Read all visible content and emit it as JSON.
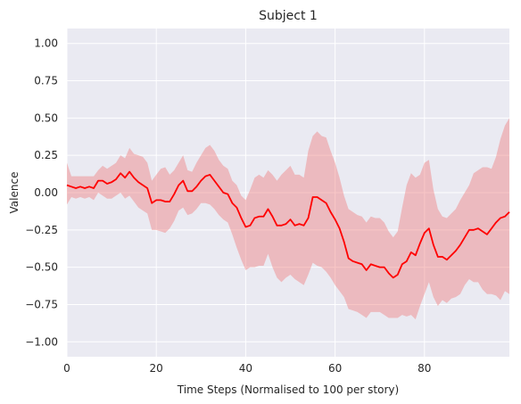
{
  "chart_data": {
    "type": "line",
    "title": "Subject 1",
    "xlabel": "Time Steps (Normalised to 100 per story)",
    "ylabel": "Valence",
    "xlim": [
      0,
      99
    ],
    "ylim": [
      -1.1,
      1.1
    ],
    "xticks": [
      0,
      20,
      40,
      60,
      80
    ],
    "xtick_labels": [
      "0",
      "20",
      "40",
      "60",
      "80"
    ],
    "yticks": [
      -1.0,
      -0.75,
      -0.5,
      -0.25,
      0.0,
      0.25,
      0.5,
      0.75,
      1.0
    ],
    "ytick_labels": [
      "−1.00",
      "−0.75",
      "−0.50",
      "−0.25",
      "0.00",
      "0.25",
      "0.50",
      "0.75",
      "1.00"
    ],
    "grid": true,
    "background_color": "#eaeaf2",
    "line_color": "#ff0000",
    "band_color": "#f08080",
    "series": [
      {
        "x": [
          0,
          1,
          2,
          3,
          4,
          5,
          6,
          7,
          8,
          9,
          10,
          11,
          12,
          13,
          14,
          15,
          16,
          17,
          18,
          19,
          20,
          21,
          22,
          23,
          24,
          25,
          26,
          27,
          28,
          29,
          30,
          31,
          32,
          33,
          34,
          35,
          36,
          37,
          38,
          39,
          40,
          41,
          42,
          43,
          44,
          45,
          46,
          47,
          48,
          49,
          50,
          51,
          52,
          53,
          54,
          55,
          56,
          57,
          58,
          59,
          60,
          61,
          62,
          63,
          64,
          65,
          66,
          67,
          68,
          69,
          70,
          71,
          72,
          73,
          74,
          75,
          76,
          77,
          78,
          79,
          80,
          81,
          82,
          83,
          84,
          85,
          86,
          87,
          88,
          89,
          90,
          91,
          92,
          93,
          94,
          95,
          96,
          97,
          98,
          99
        ],
        "mean": [
          0.05,
          0.04,
          0.03,
          0.04,
          0.03,
          0.04,
          0.03,
          0.08,
          0.08,
          0.06,
          0.07,
          0.09,
          0.13,
          0.1,
          0.14,
          0.1,
          0.07,
          0.05,
          0.03,
          -0.07,
          -0.05,
          -0.05,
          -0.06,
          -0.06,
          -0.01,
          0.05,
          0.08,
          0.01,
          0.01,
          0.04,
          0.08,
          0.11,
          0.12,
          0.08,
          0.04,
          0.0,
          -0.01,
          -0.07,
          -0.1,
          -0.17,
          -0.23,
          -0.22,
          -0.17,
          -0.16,
          -0.16,
          -0.11,
          -0.16,
          -0.22,
          -0.22,
          -0.21,
          -0.18,
          -0.22,
          -0.21,
          -0.22,
          -0.17,
          -0.03,
          -0.03,
          -0.05,
          -0.07,
          -0.13,
          -0.18,
          -0.24,
          -0.33,
          -0.44,
          -0.46,
          -0.47,
          -0.48,
          -0.52,
          -0.48,
          -0.49,
          -0.5,
          -0.5,
          -0.54,
          -0.57,
          -0.55,
          -0.48,
          -0.46,
          -0.4,
          -0.42,
          -0.34,
          -0.27,
          -0.24,
          -0.35,
          -0.43,
          -0.43,
          -0.45,
          -0.42,
          -0.39,
          -0.35,
          -0.3,
          -0.25,
          -0.25,
          -0.24,
          -0.26,
          -0.28,
          -0.24,
          -0.2,
          -0.17,
          -0.16,
          -0.13
        ],
        "upper": [
          0.2,
          0.11,
          0.11,
          0.11,
          0.11,
          0.11,
          0.11,
          0.15,
          0.18,
          0.16,
          0.18,
          0.2,
          0.25,
          0.23,
          0.3,
          0.26,
          0.25,
          0.24,
          0.2,
          0.08,
          0.12,
          0.16,
          0.17,
          0.12,
          0.15,
          0.2,
          0.25,
          0.15,
          0.14,
          0.2,
          0.25,
          0.3,
          0.32,
          0.28,
          0.22,
          0.18,
          0.16,
          0.08,
          0.05,
          -0.02,
          -0.05,
          0.02,
          0.1,
          0.12,
          0.1,
          0.15,
          0.12,
          0.08,
          0.12,
          0.15,
          0.18,
          0.12,
          0.12,
          0.1,
          0.28,
          0.38,
          0.41,
          0.38,
          0.37,
          0.28,
          0.2,
          0.1,
          -0.02,
          -0.11,
          -0.13,
          -0.15,
          -0.16,
          -0.2,
          -0.16,
          -0.17,
          -0.17,
          -0.2,
          -0.26,
          -0.3,
          -0.26,
          -0.1,
          0.05,
          0.13,
          0.1,
          0.12,
          0.2,
          0.22,
          0.02,
          -0.11,
          -0.16,
          -0.17,
          -0.14,
          -0.11,
          -0.05,
          0.0,
          0.05,
          0.13,
          0.15,
          0.17,
          0.17,
          0.16,
          0.24,
          0.36,
          0.45,
          0.5
        ],
        "lower": [
          -0.08,
          -0.03,
          -0.04,
          -0.03,
          -0.04,
          -0.03,
          -0.05,
          0.0,
          -0.02,
          -0.04,
          -0.04,
          -0.02,
          0.0,
          -0.04,
          -0.02,
          -0.06,
          -0.1,
          -0.12,
          -0.14,
          -0.25,
          -0.25,
          -0.26,
          -0.27,
          -0.24,
          -0.19,
          -0.12,
          -0.1,
          -0.15,
          -0.14,
          -0.11,
          -0.07,
          -0.07,
          -0.08,
          -0.11,
          -0.15,
          -0.18,
          -0.2,
          -0.28,
          -0.37,
          -0.45,
          -0.52,
          -0.5,
          -0.5,
          -0.49,
          -0.49,
          -0.41,
          -0.5,
          -0.57,
          -0.6,
          -0.57,
          -0.55,
          -0.58,
          -0.6,
          -0.62,
          -0.55,
          -0.47,
          -0.49,
          -0.5,
          -0.53,
          -0.57,
          -0.62,
          -0.66,
          -0.7,
          -0.78,
          -0.79,
          -0.8,
          -0.82,
          -0.84,
          -0.8,
          -0.8,
          -0.8,
          -0.82,
          -0.84,
          -0.84,
          -0.84,
          -0.82,
          -0.83,
          -0.82,
          -0.85,
          -0.76,
          -0.68,
          -0.6,
          -0.7,
          -0.76,
          -0.72,
          -0.74,
          -0.71,
          -0.7,
          -0.68,
          -0.62,
          -0.58,
          -0.6,
          -0.6,
          -0.65,
          -0.68,
          -0.68,
          -0.69,
          -0.72,
          -0.66,
          -0.68
        ]
      }
    ]
  }
}
